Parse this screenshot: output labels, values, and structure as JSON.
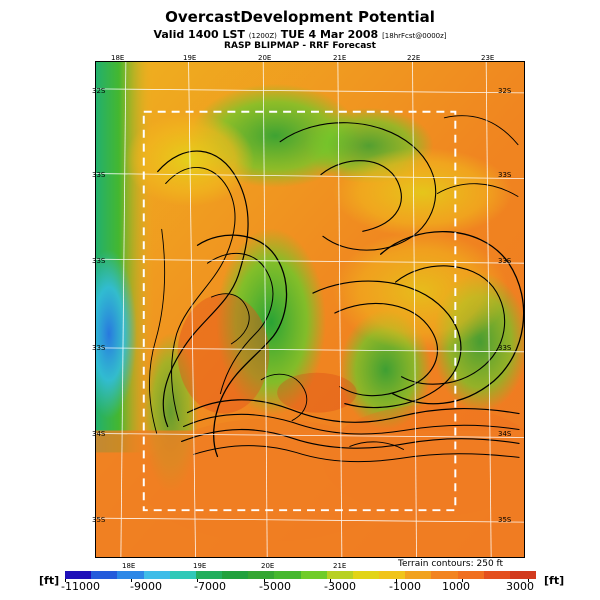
{
  "page": {
    "title": "OvercastDevelopment Potential",
    "subtitle_prefix": "Valid 1400 LST",
    "subtitle_small": "(1200Z)",
    "subtitle_middle": "TUE 4 Mar 2008",
    "subtitle_small_2": "[18hrFcst@0000z]",
    "third_line": "RASP BLIPMAP - RRF Forecast",
    "terrain_contours": "Terrain contours: 250 ft",
    "unit_left": "[ft]",
    "unit_right": "[ft]"
  },
  "map": {
    "top_labels": [
      "18E",
      "19E",
      "20E",
      "21E",
      "22E",
      "23E"
    ],
    "bottom_labels": [
      "18E",
      "19E",
      "20E",
      "21E"
    ],
    "left_labels": [
      "32S",
      "33S",
      "33S",
      "33S",
      "34S",
      "35S"
    ],
    "right_labels": [
      "32S",
      "33S",
      "33S",
      "33S",
      "34S",
      "35S"
    ]
  },
  "legend": {
    "values": [
      "-11000",
      "-9000",
      "-7000",
      "-5000",
      "-3000",
      "-1000",
      "1000",
      "3000"
    ],
    "colors": [
      "#1f10b9",
      "#245bdb",
      "#2d88e7",
      "#3fbde8",
      "#2fc9b8",
      "#22ae5d",
      "#21a13d",
      "#34a632",
      "#45b82e",
      "#70cc28",
      "#b8d123",
      "#e2d416",
      "#f0c41a",
      "#f1a21f",
      "#f28421",
      "#f06f20",
      "#e44f1e",
      "#d23a1e"
    ]
  }
}
